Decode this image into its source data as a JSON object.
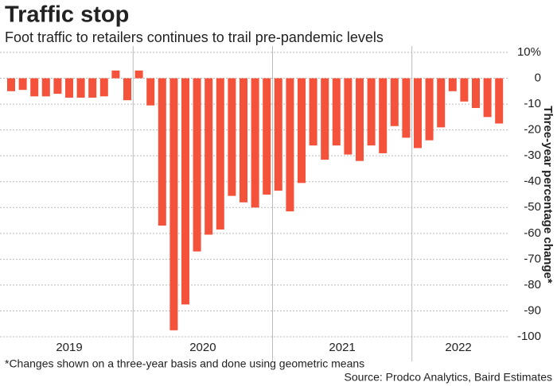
{
  "chart_data": {
    "type": "bar",
    "title": "Traffic stop",
    "subtitle": "Foot traffic to retailers continues to trail pre-pandemic levels",
    "y_axis_label": "Three-year percentage change*",
    "footnote": "*Changes shown on a three-year basis and done using geometric means",
    "source": "Source: Prodco Analytics, Baird Estimates",
    "categories": [
      null,
      null,
      null,
      null,
      null,
      null,
      null,
      null,
      null,
      null,
      null,
      null,
      null,
      null,
      null,
      null,
      null,
      null,
      null,
      null,
      null,
      null,
      null,
      null,
      null,
      null,
      null,
      null,
      null,
      null,
      null,
      null,
      null,
      null,
      null,
      null,
      null,
      null,
      null,
      null,
      null,
      null,
      null
    ],
    "x_group_labels": [
      "2019",
      "2020",
      "2021",
      "2022"
    ],
    "values": [
      -5,
      -4.5,
      -7,
      -7,
      -6,
      -7.5,
      -7.5,
      -7.5,
      -7,
      3,
      -8.5,
      3,
      -10.5,
      -57,
      -97.5,
      -87.5,
      -67,
      -60.5,
      -58.5,
      -45.5,
      -48,
      -50,
      -45,
      -43.5,
      -51.5,
      -40.5,
      -26,
      -31.5,
      -26,
      -29.5,
      -32,
      -26,
      -29,
      -18.5,
      -23,
      -27,
      -24,
      -19,
      -5,
      -9,
      -11.5,
      -15,
      -17.5
    ],
    "color": "#f4523b",
    "ylim": [
      -100,
      10
    ],
    "yticks": [
      {
        "value": 10,
        "label": "10%"
      },
      0,
      -10,
      -20,
      -30,
      -40,
      -50,
      -60,
      -70,
      -80,
      -90,
      -100
    ],
    "grid": true
  }
}
